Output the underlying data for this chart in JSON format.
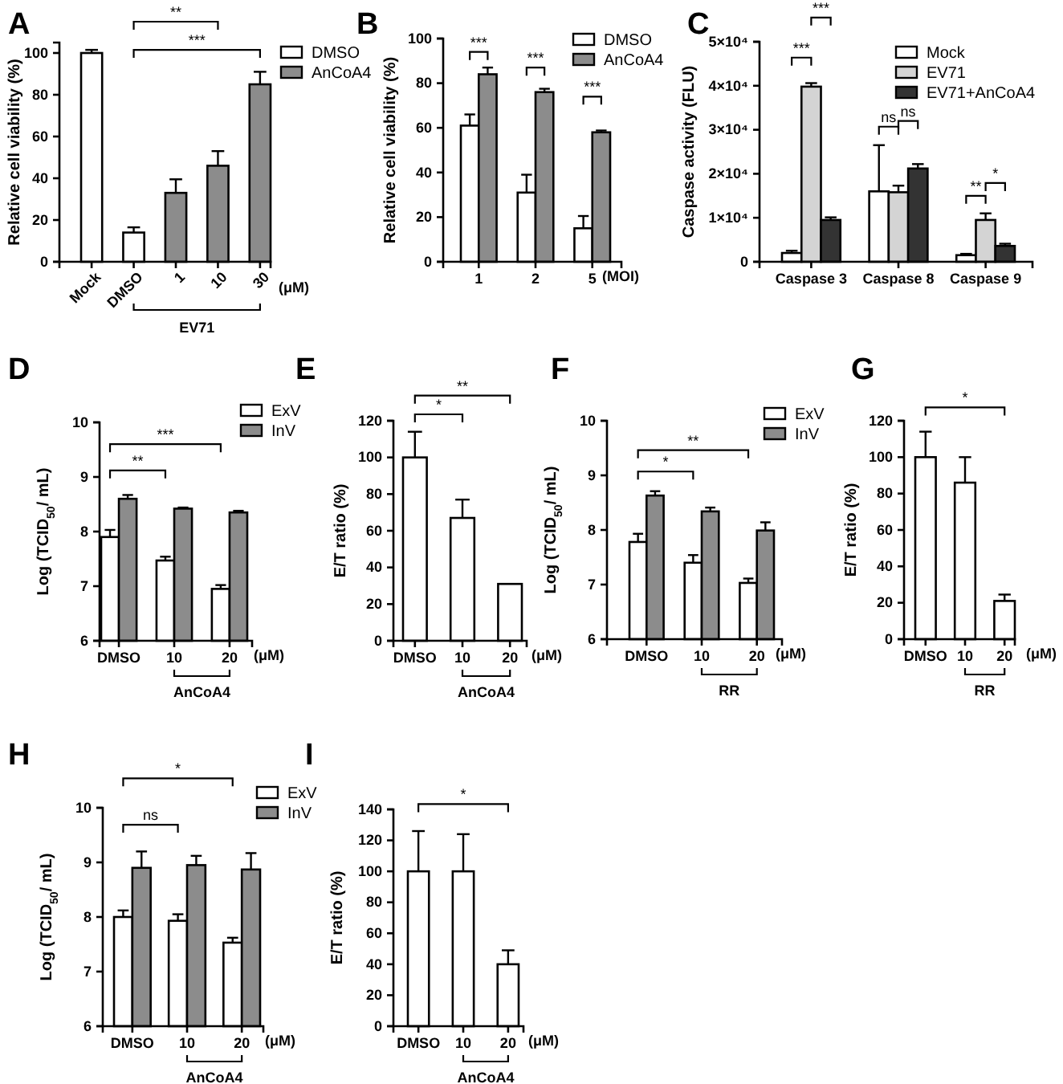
{
  "chart_data": [
    {
      "type": "bar",
      "title": "A",
      "ylabel": "Relative cell viability (%)",
      "xlabel": "(μM)",
      "categories": [
        "Mock",
        "DMSO",
        "1",
        "10",
        "30"
      ],
      "stacked": true,
      "legend": "top right",
      "series": [
        {
          "name": "DMSO",
          "color": "#ffffff",
          "values": [
            100,
            14,
            null,
            null,
            null
          ],
          "errors": [
            1.5,
            2.5,
            null,
            null,
            null
          ]
        },
        {
          "name": "AnCoA4",
          "color": "#8c8c8c",
          "values": [
            null,
            null,
            33,
            46,
            85
          ],
          "errors": [
            null,
            null,
            6.5,
            7,
            6
          ]
        }
      ],
      "ylim": [
        0,
        105
      ],
      "yticks": [
        0,
        20,
        40,
        60,
        80,
        100
      ],
      "annotations": [
        "**",
        "***",
        "EV71"
      ]
    },
    {
      "type": "bar",
      "title": "B",
      "ylabel": "Relative cell viability (%)",
      "xlabel": "(MOI)",
      "categories": [
        "1",
        "2",
        "5"
      ],
      "legend": "top right",
      "series": [
        {
          "name": "DMSO",
          "color": "#ffffff",
          "values": [
            61,
            31,
            15
          ],
          "errors": [
            5,
            8,
            5.5
          ]
        },
        {
          "name": "AnCoA4",
          "color": "#8c8c8c",
          "values": [
            84,
            76,
            58
          ],
          "errors": [
            3,
            1.5,
            0.8
          ]
        }
      ],
      "ylim": [
        0,
        100
      ],
      "yticks": [
        0,
        20,
        40,
        60,
        80,
        100
      ],
      "annotations": [
        "***",
        "***",
        "***"
      ]
    },
    {
      "type": "bar",
      "title": "C",
      "ylabel": "Caspase activity (FLU)",
      "categories": [
        "Caspase 3",
        "Caspase 8",
        "Caspase 9"
      ],
      "legend": "top right",
      "series": [
        {
          "name": "Mock",
          "color": "#ffffff",
          "values": [
            2000,
            16000,
            1500
          ],
          "errors": [
            500,
            10500,
            300
          ]
        },
        {
          "name": "EV71",
          "color": "#d4d4d4",
          "values": [
            39800,
            15800,
            9500
          ],
          "errors": [
            800,
            1500,
            1500
          ]
        },
        {
          "name": "EV71+AnCoA4",
          "color": "#333333",
          "values": [
            9500,
            21200,
            3600
          ],
          "errors": [
            600,
            1000,
            500
          ]
        }
      ],
      "ylim": [
        0,
        50000
      ],
      "yticks": [
        0,
        {
          "value": 10000,
          "label": "1×10⁴"
        },
        {
          "value": 20000,
          "label": "2×10⁴"
        },
        {
          "value": 30000,
          "label": "3×10⁴"
        },
        {
          "value": 40000,
          "label": "4×10⁴"
        },
        {
          "value": 50000,
          "label": "5×10⁴"
        }
      ],
      "annotations": [
        "***",
        "***",
        "ns",
        "ns",
        "**",
        "*"
      ]
    },
    {
      "type": "bar",
      "title": "D",
      "ylabel": "Log (TCID$_{50}$/ mL)",
      "xlabel": "(μM)",
      "categories": [
        "DMSO",
        "10",
        "20"
      ],
      "legend": "top right",
      "series": [
        {
          "name": "ExV",
          "color": "#ffffff",
          "values": [
            7.9,
            7.47,
            6.95
          ],
          "errors": [
            0.13,
            0.07,
            0.07
          ]
        },
        {
          "name": "InV",
          "color": "#8c8c8c",
          "values": [
            8.6,
            8.42,
            8.35
          ],
          "errors": [
            0.07,
            0.02,
            0.03
          ]
        }
      ],
      "ylim": [
        6,
        10
      ],
      "yticks": [
        6,
        7,
        8,
        9,
        10
      ],
      "annotations": [
        "***",
        "**",
        "AnCoA4"
      ]
    },
    {
      "type": "bar",
      "title": "E",
      "ylabel": "E/T ratio  (%)",
      "xlabel": "(μM)",
      "categories": [
        "DMSO",
        "10",
        "20"
      ],
      "series": [
        {
          "color": "#ffffff",
          "values": [
            100,
            67,
            31
          ],
          "errors": [
            14,
            10,
            null
          ]
        }
      ],
      "ylim": [
        0,
        120
      ],
      "yticks": [
        0,
        20,
        40,
        60,
        80,
        100,
        120
      ],
      "annotations": [
        "**",
        "*",
        "AnCoA4"
      ]
    },
    {
      "type": "bar",
      "title": "F",
      "ylabel": "Log (TCID$_{50}$/ mL)",
      "xlabel": "(μM)",
      "categories": [
        "DMSO",
        "10",
        "20"
      ],
      "legend": "top right",
      "series": [
        {
          "name": "ExV",
          "color": "#ffffff",
          "values": [
            7.78,
            7.4,
            7.03
          ],
          "errors": [
            0.15,
            0.14,
            0.08
          ]
        },
        {
          "name": "InV",
          "color": "#8c8c8c",
          "values": [
            8.63,
            8.34,
            7.99
          ],
          "errors": [
            0.08,
            0.07,
            0.15
          ]
        }
      ],
      "ylim": [
        6,
        10
      ],
      "yticks": [
        6,
        7,
        8,
        9,
        10
      ],
      "annotations": [
        "**",
        "*",
        "RR"
      ]
    },
    {
      "type": "bar",
      "title": "G",
      "ylabel": "E/T ratio  (%)",
      "xlabel": "(μM)",
      "categories": [
        "DMSO",
        "10",
        "20"
      ],
      "series": [
        {
          "color": "#ffffff",
          "values": [
            100,
            86,
            21
          ],
          "errors": [
            14,
            14,
            3.5
          ]
        }
      ],
      "ylim": [
        0,
        120
      ],
      "yticks": [
        0,
        20,
        40,
        60,
        80,
        100,
        120
      ],
      "annotations": [
        "*",
        "RR"
      ]
    },
    {
      "type": "bar",
      "title": "H",
      "ylabel": "Log (TCID$_{50}$/ mL)",
      "xlabel": "(μM)",
      "categories": [
        "DMSO",
        "10",
        "20"
      ],
      "legend": "top right",
      "series": [
        {
          "name": "ExV",
          "color": "#ffffff",
          "values": [
            8,
            7.93,
            7.53
          ],
          "errors": [
            0.12,
            0.12,
            0.09
          ]
        },
        {
          "name": "InV",
          "color": "#8c8c8c",
          "values": [
            8.9,
            8.95,
            8.87
          ],
          "errors": [
            0.3,
            0.17,
            0.3
          ]
        }
      ],
      "ylim": [
        6,
        10
      ],
      "yticks": [
        6,
        7,
        8,
        9,
        10
      ],
      "annotations": [
        "*",
        "ns",
        "AnCoA4"
      ]
    },
    {
      "type": "bar",
      "title": "I",
      "ylabel": "E/T ratio  (%)",
      "xlabel": "(μM)",
      "categories": [
        "DMSO",
        "10",
        "20"
      ],
      "series": [
        {
          "color": "#ffffff",
          "values": [
            100,
            100,
            40
          ],
          "errors": [
            26,
            24,
            9
          ]
        }
      ],
      "ylim": [
        0,
        140
      ],
      "yticks": [
        0,
        20,
        40,
        60,
        80,
        100,
        120,
        140
      ],
      "annotations": [
        "*",
        "AnCoA4"
      ]
    }
  ]
}
